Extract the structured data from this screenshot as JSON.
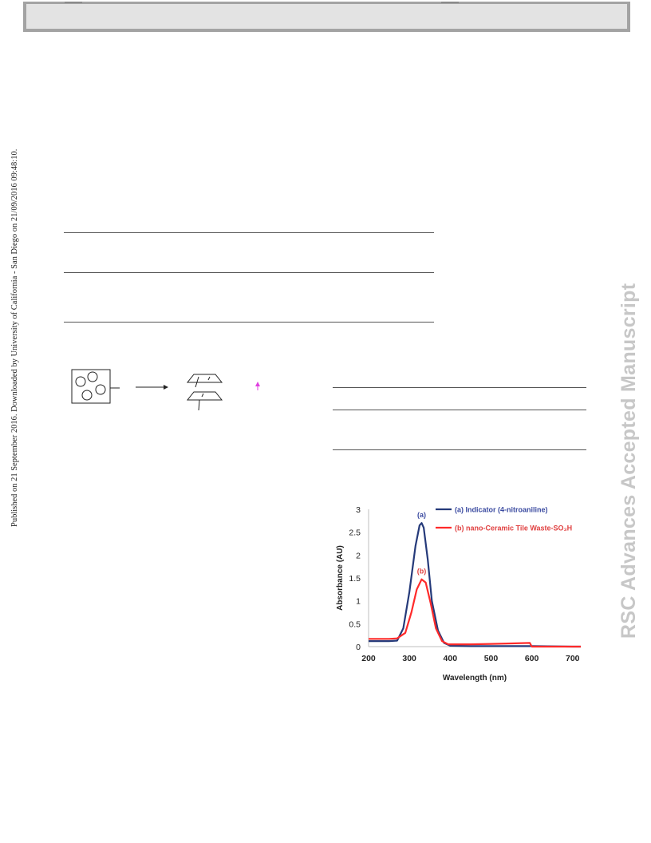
{
  "header": {},
  "margin_left_text": "Published on 21 September 2016. Downloaded by University of California - San Diego on 21/09/2016 09:48:10.",
  "margin_right_text": "RSC Advances Accepted Manuscript",
  "colors": {
    "bar_fill": "#e3e3e3",
    "bar_border": "#a3a3a3",
    "series_a": "#253a7a",
    "series_b": "#ff2a2a",
    "label_a": "#3a4aa0",
    "label_b": "#e04040",
    "arrow_marker": "#e040e0"
  },
  "chart_data": {
    "type": "line",
    "xlabel": "Wavelength (nm)",
    "ylabel": "Absorbance (AU)",
    "xlim": [
      200,
      720
    ],
    "ylim": [
      0,
      3
    ],
    "x_ticks": [
      "200",
      "300",
      "400",
      "500",
      "600",
      "700"
    ],
    "y_ticks": [
      "0",
      "0.5",
      "1",
      "1.5",
      "2",
      "2.5",
      "3"
    ],
    "grid": false,
    "legend_position": "top-right",
    "series": [
      {
        "name": "(a) Indicator (4-nitroaniline)",
        "peak_label": "(a)",
        "x": [
          200,
          250,
          270,
          285,
          300,
          315,
          325,
          330,
          335,
          345,
          355,
          370,
          385,
          400,
          450,
          500,
          600,
          700,
          720
        ],
        "y": [
          0.12,
          0.12,
          0.13,
          0.4,
          1.2,
          2.2,
          2.65,
          2.7,
          2.6,
          1.9,
          1.0,
          0.35,
          0.08,
          0.02,
          0.01,
          0.01,
          0.01,
          0.0,
          0.0
        ]
      },
      {
        "name": "(b) nano-Ceramic Tile Waste-SO₃H",
        "peak_label": "(b)",
        "x": [
          200,
          250,
          270,
          290,
          305,
          318,
          330,
          340,
          352,
          365,
          380,
          395,
          410,
          450,
          500,
          550,
          595,
          600,
          700,
          720
        ],
        "y": [
          0.17,
          0.17,
          0.18,
          0.3,
          0.75,
          1.25,
          1.47,
          1.4,
          0.95,
          0.4,
          0.12,
          0.05,
          0.05,
          0.05,
          0.06,
          0.07,
          0.08,
          0.0,
          0.0,
          0.0
        ]
      }
    ]
  }
}
